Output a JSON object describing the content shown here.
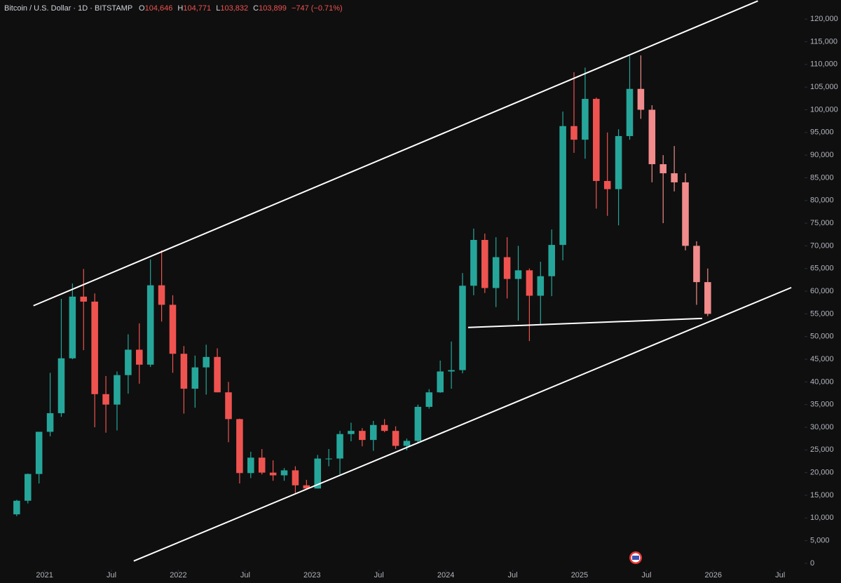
{
  "header": {
    "symbol": "Bitcoin / U.S. Dollar · 1D · BITSTAMP",
    "open_label": "O",
    "open": "104,646",
    "high_label": "H",
    "high": "104,771",
    "low_label": "L",
    "low": "103,832",
    "close_label": "C",
    "close": "103,899",
    "change": "−747 (−0.71%)"
  },
  "chart_data": {
    "type": "candlestick",
    "x": [
      "2020-10",
      "2020-11",
      "2020-12",
      "2021-01",
      "2021-02",
      "2021-03",
      "2021-04",
      "2021-05",
      "2021-06",
      "2021-07",
      "2021-08",
      "2021-09",
      "2021-10",
      "2021-11",
      "2021-12",
      "2022-01",
      "2022-02",
      "2022-03",
      "2022-04",
      "2022-05",
      "2022-06",
      "2022-07",
      "2022-08",
      "2022-09",
      "2022-10",
      "2022-11",
      "2022-12",
      "2023-01",
      "2023-02",
      "2023-03",
      "2023-04",
      "2023-05",
      "2023-06",
      "2023-07",
      "2023-08",
      "2023-09",
      "2023-10",
      "2023-11",
      "2023-12",
      "2024-01",
      "2024-02",
      "2024-03",
      "2024-04",
      "2024-05",
      "2024-06",
      "2024-07",
      "2024-08",
      "2024-09",
      "2024-10",
      "2024-11",
      "2024-12",
      "2025-01",
      "2025-02",
      "2025-03",
      "2025-04",
      "2025-05",
      "2025-06",
      "2025-07",
      "2025-08",
      "2025-09",
      "2025-10",
      "2025-11",
      "2025-12"
    ],
    "open": [
      10800,
      13800,
      19700,
      29000,
      33100,
      45200,
      58800,
      57700,
      37300,
      35000,
      41500,
      47100,
      43800,
      61300,
      57000,
      46200,
      38500,
      43200,
      45500,
      37700,
      31800,
      19900,
      23300,
      20000,
      19400,
      20500,
      17200,
      16500,
      23100,
      23100,
      28500,
      29200,
      27200,
      30500,
      29200,
      25900,
      27000,
      34500,
      37700,
      42300,
      42600,
      61200,
      71300,
      60700,
      67500,
      62700,
      64600,
      59000,
      63300,
      70200,
      96400,
      93400,
      102400,
      84300,
      82500,
      94200,
      104600,
      100000,
      88000,
      86000,
      84000,
      70000,
      62000
    ],
    "high": [
      14000,
      19800,
      29000,
      42000,
      58300,
      61700,
      64900,
      59500,
      41300,
      42300,
      50500,
      52900,
      67000,
      69000,
      59100,
      47900,
      45800,
      48200,
      47400,
      40000,
      31900,
      24600,
      25200,
      22700,
      21000,
      21400,
      18400,
      23900,
      25200,
      29200,
      31000,
      29800,
      31400,
      31800,
      30200,
      27500,
      35000,
      38400,
      44700,
      48900,
      64000,
      73800,
      72700,
      71900,
      71900,
      70000,
      65000,
      66500,
      73600,
      99600,
      108300,
      109300,
      102700,
      95000,
      95700,
      111900,
      112000,
      101000,
      90000,
      92000,
      86000,
      71000,
      65000
    ],
    "low": [
      10400,
      13200,
      17600,
      28000,
      32300,
      45000,
      47000,
      30000,
      28800,
      29300,
      37400,
      39600,
      43300,
      53300,
      42000,
      33000,
      34300,
      37200,
      37700,
      26700,
      17600,
      18800,
      19600,
      18200,
      18200,
      15500,
      16300,
      16500,
      21400,
      19600,
      26900,
      25800,
      24800,
      28900,
      25200,
      24900,
      26600,
      34100,
      37600,
      38500,
      41900,
      59100,
      59600,
      56500,
      58400,
      53500,
      49000,
      52500,
      58900,
      66800,
      90500,
      89200,
      78200,
      76600,
      74500,
      93400,
      98000,
      84000,
      75000,
      82000,
      69000,
      57000,
      54500
    ],
    "close": [
      13800,
      19700,
      29000,
      33100,
      45200,
      58800,
      57700,
      37300,
      35000,
      41500,
      47100,
      43800,
      61300,
      57000,
      46200,
      38500,
      43200,
      45500,
      37700,
      31800,
      19900,
      23300,
      20000,
      19400,
      20500,
      17200,
      16500,
      23100,
      23100,
      28500,
      29200,
      27200,
      30500,
      29200,
      25900,
      27000,
      34500,
      37700,
      42300,
      42600,
      61200,
      71300,
      60700,
      67500,
      62700,
      64600,
      59000,
      63300,
      70200,
      96400,
      93400,
      102400,
      84300,
      82500,
      94200,
      104600,
      100000,
      88000,
      86000,
      84000,
      70000,
      62000,
      55000
    ],
    "up_color": "#26a69a",
    "down_color": "#ef5350",
    "projection_from": "2025-06",
    "projection_color": "#f28b8b",
    "trendlines": [
      {
        "x": [
          "2020-12",
          "2026-05"
        ],
        "y": [
          56800,
          124000
        ]
      },
      {
        "x": [
          "2021-09",
          "2026-08"
        ],
        "y": [
          500,
          60800
        ]
      },
      {
        "x": [
          "2024-03",
          "2025-12"
        ],
        "y": [
          52000,
          54000
        ]
      }
    ],
    "line_color": "#ffffff",
    "xlim": [
      "2020-09",
      "2026-09"
    ],
    "ylim": [
      -1400,
      124200
    ],
    "xticks": [
      {
        "value": "2021-01",
        "label": "2021"
      },
      {
        "value": "2021-07",
        "label": "Jul"
      },
      {
        "value": "2022-01",
        "label": "2022"
      },
      {
        "value": "2022-07",
        "label": "Jul"
      },
      {
        "value": "2023-01",
        "label": "2023"
      },
      {
        "value": "2023-07",
        "label": "Jul"
      },
      {
        "value": "2024-01",
        "label": "2024"
      },
      {
        "value": "2024-07",
        "label": "Jul"
      },
      {
        "value": "2025-01",
        "label": "2025"
      },
      {
        "value": "2025-07",
        "label": "Jul"
      },
      {
        "value": "2026-01",
        "label": "2026"
      },
      {
        "value": "2026-07",
        "label": "Jul"
      }
    ],
    "yticks": [
      0,
      {
        "value": 5000,
        "label": "5,000"
      },
      {
        "value": 10000,
        "label": "10,000"
      },
      {
        "value": 15000,
        "label": "15,000"
      },
      {
        "value": 20000,
        "label": "20,000"
      },
      {
        "value": 25000,
        "label": "25,000"
      },
      {
        "value": 30000,
        "label": "30,000"
      },
      {
        "value": 35000,
        "label": "35,000"
      },
      {
        "value": 40000,
        "label": "40,000"
      },
      {
        "value": 45000,
        "label": "45,000"
      },
      {
        "value": 50000,
        "label": "50,000"
      },
      {
        "value": 55000,
        "label": "55,000"
      },
      {
        "value": 60000,
        "label": "60,000"
      },
      {
        "value": 65000,
        "label": "65,000"
      },
      {
        "value": 70000,
        "label": "70,000"
      },
      {
        "value": 75000,
        "label": "75,000"
      },
      {
        "value": 80000,
        "label": "80,000"
      },
      {
        "value": 85000,
        "label": "85,000"
      },
      {
        "value": 90000,
        "label": "90,000"
      },
      {
        "value": 95000,
        "label": "95,000"
      },
      {
        "value": 100000,
        "label": "100,000"
      },
      {
        "value": 105000,
        "label": "105,000"
      },
      {
        "value": 110000,
        "label": "110,000"
      },
      {
        "value": 115000,
        "label": "115,000"
      },
      {
        "value": 120000,
        "label": "120,000"
      }
    ],
    "grid": false
  }
}
